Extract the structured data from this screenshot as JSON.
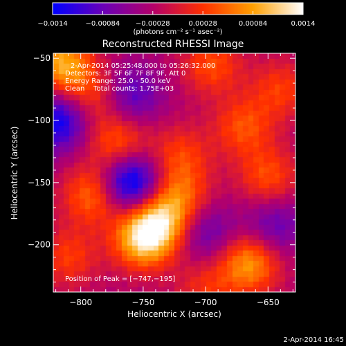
{
  "chart_data": {
    "type": "heatmap",
    "title": "Reconstructed RHESSI Image",
    "xlabel": "Heliocentric X (arcsec)",
    "ylabel": "Heliocentric Y (arcsec)",
    "xlim": [
      -822,
      -628
    ],
    "ylim": [
      -238,
      -46
    ],
    "x_ticks": [
      -800,
      -750,
      -700,
      -650
    ],
    "y_ticks": [
      -200,
      -150,
      -100,
      -50
    ],
    "x_tick_labels": [
      "−800",
      "−750",
      "−700",
      "−650"
    ],
    "y_tick_labels": [
      "−200",
      "−150",
      "−100",
      "−50"
    ],
    "colorbar": {
      "range": [
        -0.0014,
        0.0014
      ],
      "ticks": [
        -0.0014,
        -0.00084,
        -0.00028,
        0.00028,
        0.00084,
        0.0014
      ],
      "tick_labels": [
        "−0.0014",
        "−0.00084",
        "−0.00028",
        "0.00028",
        "0.00084",
        "0.0014"
      ],
      "unit_label": "(photons cm⁻² s⁻¹ asec⁻²)",
      "colors": [
        "#0000ff",
        "#6a00b8",
        "#b4006a",
        "#ff3000",
        "#ffa000",
        "#ffffff"
      ]
    },
    "annotations": [
      "2-Apr-2014 05:25:48.000 to 05:26:32.000",
      "Detectors: 3F 5F 6F 7F 8F 9F, Att 0",
      "Energy Range: 25.0 - 50.0 keV",
      "Clean    Total counts: 1.75E+03"
    ],
    "peak_label": "Position of Peak = [−747,−195]",
    "components": [
      {
        "x": -750,
        "y": -195,
        "value": 0.0014
      },
      {
        "x": -735,
        "y": -180,
        "value": 0.001
      },
      {
        "x": -665,
        "y": -215,
        "value": 0.0011
      },
      {
        "x": -815,
        "y": -55,
        "value": 0.0012
      },
      {
        "x": -790,
        "y": -80,
        "value": 0.0006
      },
      {
        "x": -695,
        "y": -55,
        "value": 0.0007
      },
      {
        "x": -640,
        "y": -75,
        "value": 0.0006
      },
      {
        "x": -770,
        "y": -118,
        "value": 0.0008
      },
      {
        "x": -720,
        "y": -128,
        "value": 0.0006
      },
      {
        "x": -790,
        "y": -160,
        "value": 0.0009
      },
      {
        "x": -720,
        "y": -160,
        "value": 0.0007
      },
      {
        "x": -650,
        "y": -145,
        "value": 0.0007
      },
      {
        "x": -670,
        "y": -105,
        "value": 0.0007
      },
      {
        "x": -810,
        "y": -210,
        "value": 0.0006
      },
      {
        "x": -700,
        "y": -235,
        "value": 0.0005
      },
      {
        "x": -760,
        "y": -150,
        "value": -0.0014
      },
      {
        "x": -818,
        "y": -100,
        "value": -0.0011
      },
      {
        "x": -760,
        "y": -80,
        "value": -0.0007
      },
      {
        "x": -700,
        "y": -190,
        "value": -0.0006
      },
      {
        "x": -645,
        "y": -185,
        "value": -0.0006
      }
    ]
  },
  "footer": {
    "timestamp": "2-Apr-2014 16:45"
  }
}
